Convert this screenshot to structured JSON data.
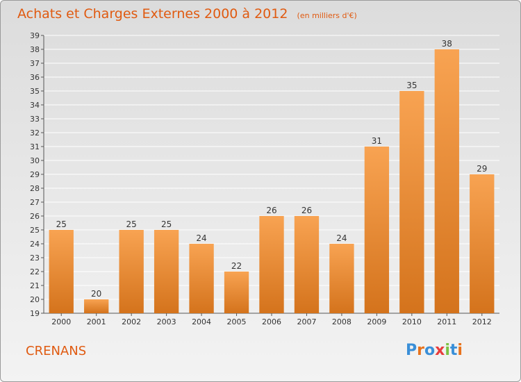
{
  "header": {
    "title": "Achats et Charges Externes 2000 à 2012",
    "subtitle": "(en milliers d'€)"
  },
  "footer": {
    "commune": "CRENANS",
    "logo_text": "Proxiti",
    "logo_colors": [
      "#3a8fd8",
      "#e8731c",
      "#3a8fd8",
      "#e83c3c",
      "#7cc242",
      "#3a8fd8",
      "#e8731c"
    ]
  },
  "colors": {
    "bar_light": "#f8a352",
    "bar_dark": "#d4731c",
    "accent": "#e05a10",
    "grid": "#ffffff",
    "text": "#333333"
  },
  "chart_data": {
    "type": "bar",
    "title": "Achats et Charges Externes 2000 à 2012",
    "subtitle": "(en milliers d'€)",
    "categories": [
      "2000",
      "2001",
      "2002",
      "2003",
      "2004",
      "2005",
      "2006",
      "2007",
      "2008",
      "2009",
      "2010",
      "2011",
      "2012"
    ],
    "values": [
      25,
      20,
      25,
      25,
      24,
      22,
      26,
      26,
      24,
      31,
      35,
      38,
      29
    ],
    "ylim": [
      19,
      39
    ],
    "yticks": [
      19,
      20,
      21,
      22,
      23,
      24,
      25,
      26,
      27,
      28,
      29,
      30,
      31,
      32,
      33,
      34,
      35,
      36,
      37,
      38,
      39
    ],
    "grid": true,
    "data_labels": true
  }
}
